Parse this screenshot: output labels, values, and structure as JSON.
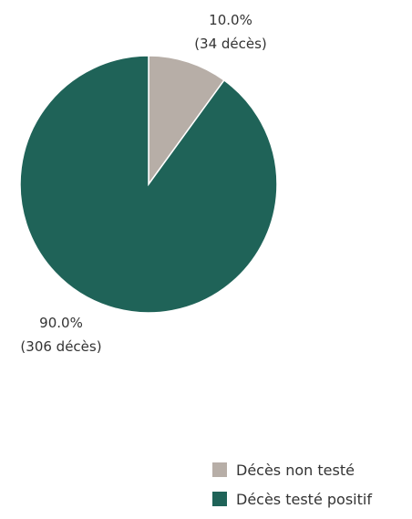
{
  "chart_data": {
    "type": "pie",
    "series": [
      {
        "name": "Décès non testé",
        "value": 10.0,
        "count": 34,
        "percent_label": "10.0%",
        "count_label": "(34 décès)",
        "color": "#b7aea7"
      },
      {
        "name": "Décès testé positif",
        "value": 90.0,
        "count": 306,
        "percent_label": "90.0%",
        "count_label": "(306 décès)",
        "color": "#1f6358"
      }
    ],
    "title": "",
    "legend_position": "bottom-right"
  }
}
